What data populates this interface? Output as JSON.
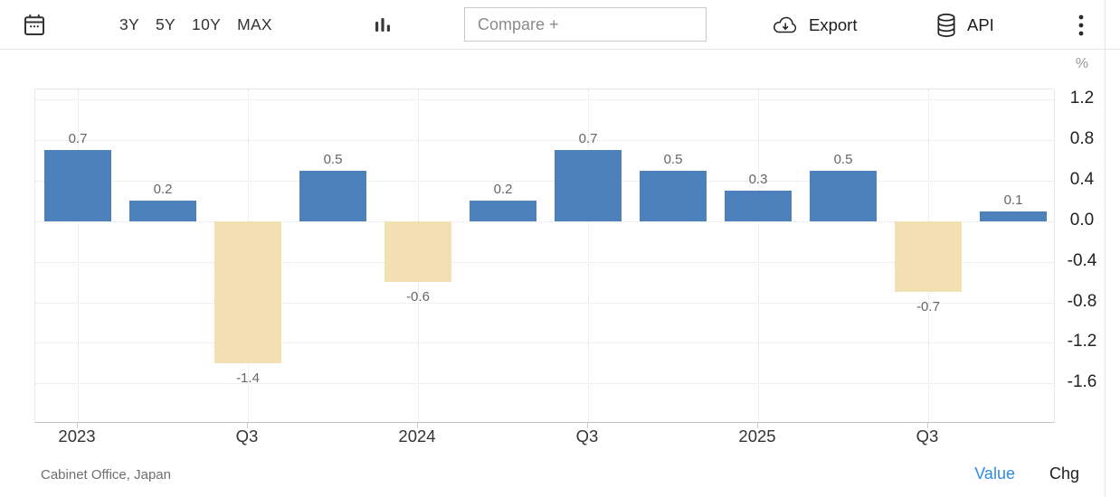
{
  "toolbar": {
    "calendar_icon": "calendar-icon",
    "ranges": [
      "3Y",
      "5Y",
      "10Y",
      "MAX"
    ],
    "chart_type_icon": "bar-chart-icon",
    "compare": {
      "placeholder": "Compare +",
      "value": ""
    },
    "export": {
      "label": "Export",
      "icon": "cloud-download-icon"
    },
    "api": {
      "label": "API",
      "icon": "database-icon"
    },
    "menu_icon": "kebab-menu-icon"
  },
  "chart_data": {
    "type": "bar",
    "title": "",
    "unit": "%",
    "values": [
      0.7,
      0.2,
      -1.4,
      0.5,
      -0.6,
      0.2,
      0.7,
      0.5,
      0.3,
      0.5,
      -0.7,
      0.1
    ],
    "x_ticks": [
      {
        "index": 0,
        "label": "2023"
      },
      {
        "index": 2,
        "label": "Q3"
      },
      {
        "index": 4,
        "label": "2024"
      },
      {
        "index": 6,
        "label": "Q3"
      },
      {
        "index": 8,
        "label": "2025"
      },
      {
        "index": 10,
        "label": "Q3"
      }
    ],
    "y_ticks": [
      1.2,
      0.8,
      0.4,
      0.0,
      -0.4,
      -0.8,
      -1.2,
      -1.6
    ],
    "ylim": [
      -2.0,
      1.3
    ],
    "grid": true,
    "legend_position": "none",
    "positive_color": "#4d81bb",
    "negative_color": "#f3e0b3"
  },
  "footer": {
    "source": "Cabinet Office, Japan",
    "series_toggles": [
      {
        "label": "Value",
        "active": true,
        "color": "#2e8ce9"
      },
      {
        "label": "Chg",
        "active": false,
        "color": "#1d1d1d"
      }
    ]
  }
}
